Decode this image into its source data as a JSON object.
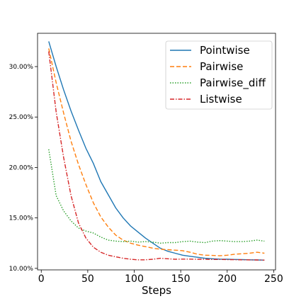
{
  "chart_data": {
    "type": "line",
    "title": "",
    "xlabel": "Steps",
    "ylabel": "",
    "xlim": [
      -4,
      252
    ],
    "ylim": [
      0.0985,
      0.333
    ],
    "x_ticks": [
      0,
      50,
      100,
      150,
      200,
      250
    ],
    "x_tick_labels": [
      "0",
      "50",
      "100",
      "150",
      "200",
      "250"
    ],
    "y_ticks": [
      0.1,
      0.15,
      0.2,
      0.25,
      0.3
    ],
    "y_tick_labels": [
      "10.00%",
      "15.00%",
      "20.00%",
      "25.00%",
      "30.00%"
    ],
    "grid": false,
    "legend_position": "top-right",
    "series": [
      {
        "name": "Pointwise",
        "color": "#1f77b4",
        "style": "solid",
        "x": [
          8,
          16,
          24,
          32,
          40,
          48,
          56,
          64,
          72,
          80,
          88,
          96,
          104,
          112,
          120,
          128,
          136,
          144,
          152,
          160,
          168,
          176,
          184,
          192,
          200,
          208,
          216,
          224,
          232,
          240
        ],
        "y": [
          0.325,
          0.3,
          0.277,
          0.256,
          0.237,
          0.219,
          0.204,
          0.186,
          0.173,
          0.16,
          0.15,
          0.142,
          0.136,
          0.13,
          0.125,
          0.12,
          0.117,
          0.115,
          0.113,
          0.112,
          0.111,
          0.11,
          0.1095,
          0.1092,
          0.109,
          0.1088,
          0.1087,
          0.1085,
          0.1083,
          0.1082
        ]
      },
      {
        "name": "Pairwise",
        "color": "#ff7f0e",
        "style": "dashed",
        "x": [
          8,
          16,
          24,
          32,
          40,
          48,
          56,
          64,
          72,
          80,
          88,
          96,
          104,
          112,
          120,
          128,
          136,
          144,
          152,
          160,
          168,
          176,
          184,
          192,
          200,
          208,
          216,
          224,
          232,
          240
        ],
        "y": [
          0.318,
          0.284,
          0.254,
          0.226,
          0.203,
          0.183,
          0.165,
          0.151,
          0.141,
          0.133,
          0.128,
          0.125,
          0.123,
          0.1215,
          0.12,
          0.119,
          0.1185,
          0.118,
          0.1175,
          0.116,
          0.114,
          0.113,
          0.1128,
          0.1125,
          0.113,
          0.114,
          0.1145,
          0.115,
          0.116,
          0.115
        ]
      },
      {
        "name": "Pairwise_diff",
        "color": "#2ca02c",
        "style": "dotted",
        "x": [
          8,
          16,
          24,
          32,
          40,
          48,
          56,
          64,
          72,
          80,
          88,
          96,
          104,
          112,
          120,
          128,
          136,
          144,
          152,
          160,
          168,
          176,
          184,
          192,
          200,
          208,
          216,
          224,
          232,
          240
        ],
        "y": [
          0.218,
          0.172,
          0.157,
          0.147,
          0.14,
          0.137,
          0.135,
          0.131,
          0.128,
          0.127,
          0.1265,
          0.127,
          0.126,
          0.1265,
          0.126,
          0.125,
          0.1255,
          0.1255,
          0.1265,
          0.127,
          0.126,
          0.1255,
          0.127,
          0.1275,
          0.127,
          0.1265,
          0.1265,
          0.127,
          0.128,
          0.127
        ]
      },
      {
        "name": "Listwise",
        "color": "#d62728",
        "style": "dashdot",
        "x": [
          8,
          16,
          24,
          32,
          40,
          48,
          56,
          64,
          72,
          80,
          88,
          96,
          104,
          112,
          120,
          128,
          136,
          144,
          152,
          160,
          168,
          176,
          184,
          192,
          200,
          208,
          216,
          224,
          232,
          240
        ],
        "y": [
          0.315,
          0.255,
          0.21,
          0.172,
          0.145,
          0.13,
          0.121,
          0.116,
          0.113,
          0.1115,
          0.11,
          0.109,
          0.1085,
          0.1085,
          0.109,
          0.11,
          0.1095,
          0.109,
          0.1092,
          0.1092,
          0.109,
          0.109,
          0.1088,
          0.1088,
          0.1087,
          0.1086,
          0.1085,
          0.1084,
          0.1083,
          0.1082
        ]
      }
    ]
  }
}
